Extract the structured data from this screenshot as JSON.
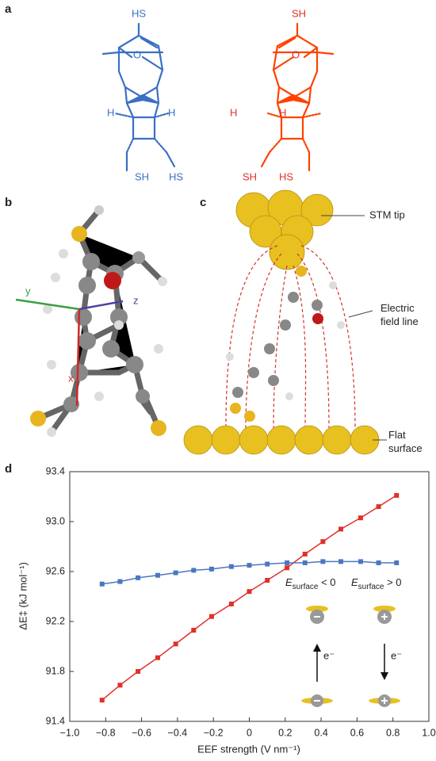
{
  "panel_labels": [
    "a",
    "b",
    "c",
    "d"
  ],
  "panel_a": {
    "blue_labels": [
      "HS",
      "O",
      "H",
      "H",
      "SH",
      "HS"
    ],
    "red_labels": [
      "SH",
      "O",
      "H",
      "H",
      "SH",
      "HS"
    ]
  },
  "panel_b": {
    "axis_labels": [
      "y",
      "z",
      "x"
    ]
  },
  "panel_c": {
    "tip_label": "STM tip",
    "field_label": [
      "Electric",
      "field line"
    ],
    "surface_label": [
      "Flat",
      "surface"
    ]
  },
  "chart_data": {
    "type": "line",
    "x_label": "EEF strength (V nm⁻¹)",
    "y_label": "ΔE‡ (kJ mol⁻¹)",
    "x": [
      -0.82,
      -0.72,
      -0.62,
      -0.51,
      -0.41,
      -0.31,
      -0.21,
      -0.1,
      0,
      0.1,
      0.21,
      0.31,
      0.41,
      0.51,
      0.62,
      0.72,
      0.82
    ],
    "series": [
      {
        "color": "#e0302a",
        "values": [
          91.57,
          91.69,
          91.8,
          91.91,
          92.02,
          92.13,
          92.24,
          92.34,
          92.44,
          92.53,
          92.63,
          92.74,
          92.84,
          92.94,
          93.03,
          93.12,
          93.21
        ]
      },
      {
        "color": "#4a78c0",
        "values": [
          92.5,
          92.52,
          92.55,
          92.57,
          92.59,
          92.61,
          92.62,
          92.64,
          92.65,
          92.66,
          92.67,
          92.67,
          92.68,
          92.68,
          92.68,
          92.67,
          92.67
        ]
      }
    ],
    "marker": "square",
    "xlim": [
      -1,
      1
    ],
    "xticks": [
      {
        "value": -1,
        "label": "−1.0"
      },
      {
        "value": -0.8,
        "label": "−0.8"
      },
      {
        "value": -0.6,
        "label": "−0.6"
      },
      {
        "value": -0.4,
        "label": "−0.4"
      },
      {
        "value": -0.2,
        "label": "−0.2"
      },
      0,
      0.2,
      0.4,
      0.6,
      0.8,
      {
        "value": 1,
        "label": "1.0"
      }
    ],
    "ylim": [
      91.4,
      93.4
    ],
    "yticks": [
      91.4,
      91.8,
      92.2,
      92.6,
      {
        "value": 93,
        "label": "93.0"
      },
      93.4
    ],
    "inset": {
      "conditions": [
        {
          "symbol": "E",
          "subscript": "surface",
          "relation": " < 0"
        },
        {
          "symbol": "E",
          "subscript": "surface",
          "relation": " > 0"
        }
      ],
      "electron": "e⁻"
    }
  }
}
